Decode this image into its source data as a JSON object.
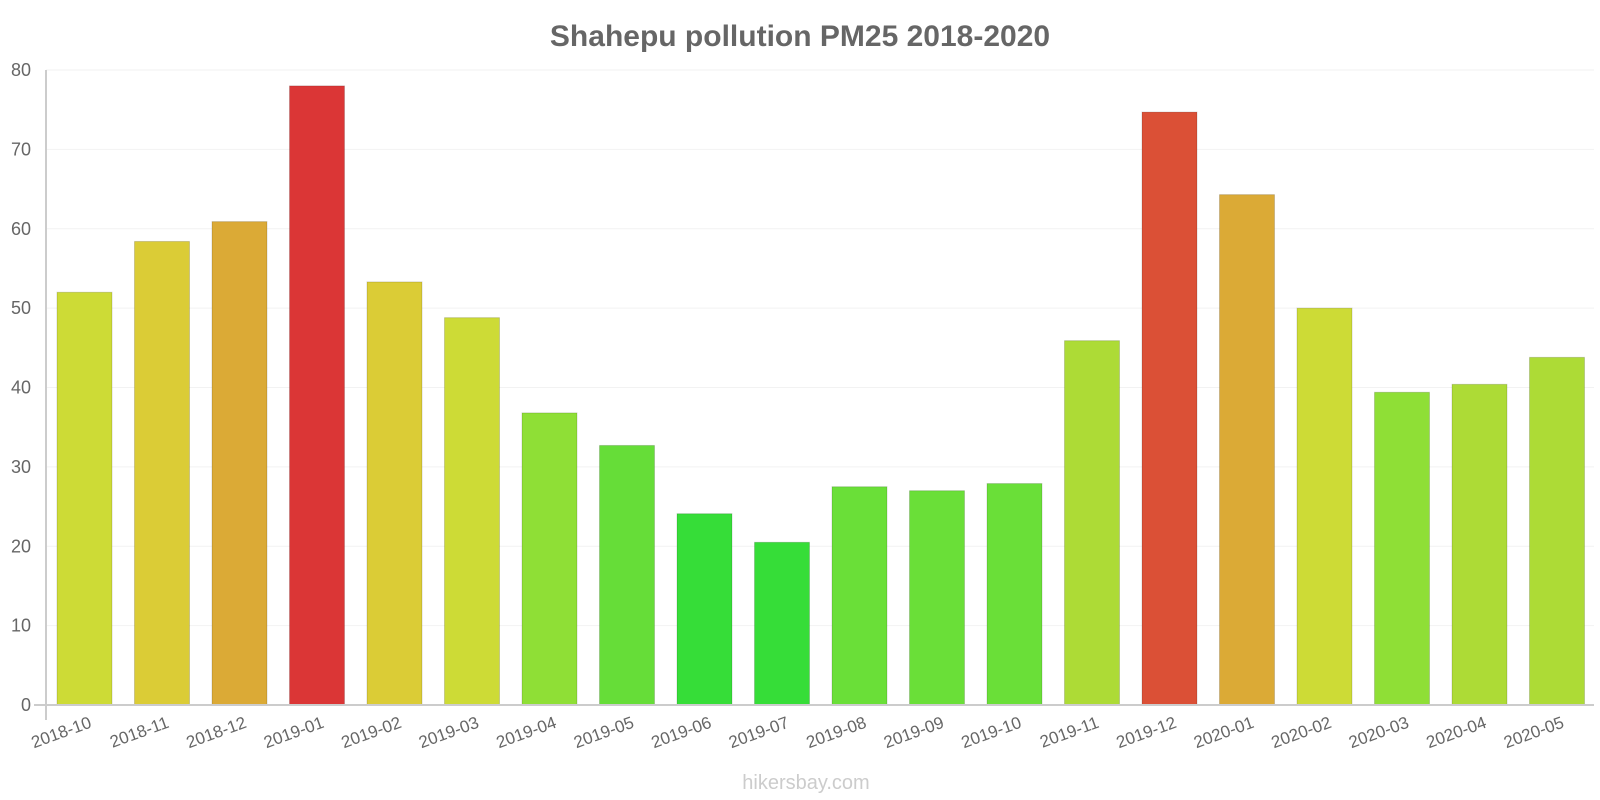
{
  "chart_data": {
    "type": "bar",
    "title": "Shahepu pollution PM25 2018-2020",
    "xlabel": "",
    "ylabel": "",
    "ylim": [
      0,
      80
    ],
    "yticks": [
      0,
      10,
      20,
      30,
      40,
      50,
      60,
      70,
      80
    ],
    "categories": [
      "2018-10",
      "2018-11",
      "2018-12",
      "2019-01",
      "2019-02",
      "2019-03",
      "2019-04",
      "2019-05",
      "2019-06",
      "2019-07",
      "2019-08",
      "2019-09",
      "2019-10",
      "2019-11",
      "2019-12",
      "2020-01",
      "2020-02",
      "2020-03",
      "2020-04",
      "2020-05"
    ],
    "values": [
      52,
      58.4,
      60.9,
      78,
      53.3,
      48.8,
      36.8,
      32.7,
      24.1,
      20.5,
      27.5,
      27,
      27.9,
      45.9,
      74.7,
      64.3,
      50,
      39.4,
      40.4,
      43.8
    ],
    "colors": [
      "#cddb36",
      "#dbcc36",
      "#dbaa36",
      "#db3636",
      "#dbcc36",
      "#cddb36",
      "#8fdf36",
      "#66dd38",
      "#36dd38",
      "#36dd38",
      "#6adf38",
      "#6adf38",
      "#6adf38",
      "#addb36",
      "#db5036",
      "#dbaa36",
      "#cddb36",
      "#8fdf36",
      "#addb36",
      "#addb36"
    ],
    "grid": true
  },
  "footer": {
    "watermark": "hikersbay.com"
  }
}
